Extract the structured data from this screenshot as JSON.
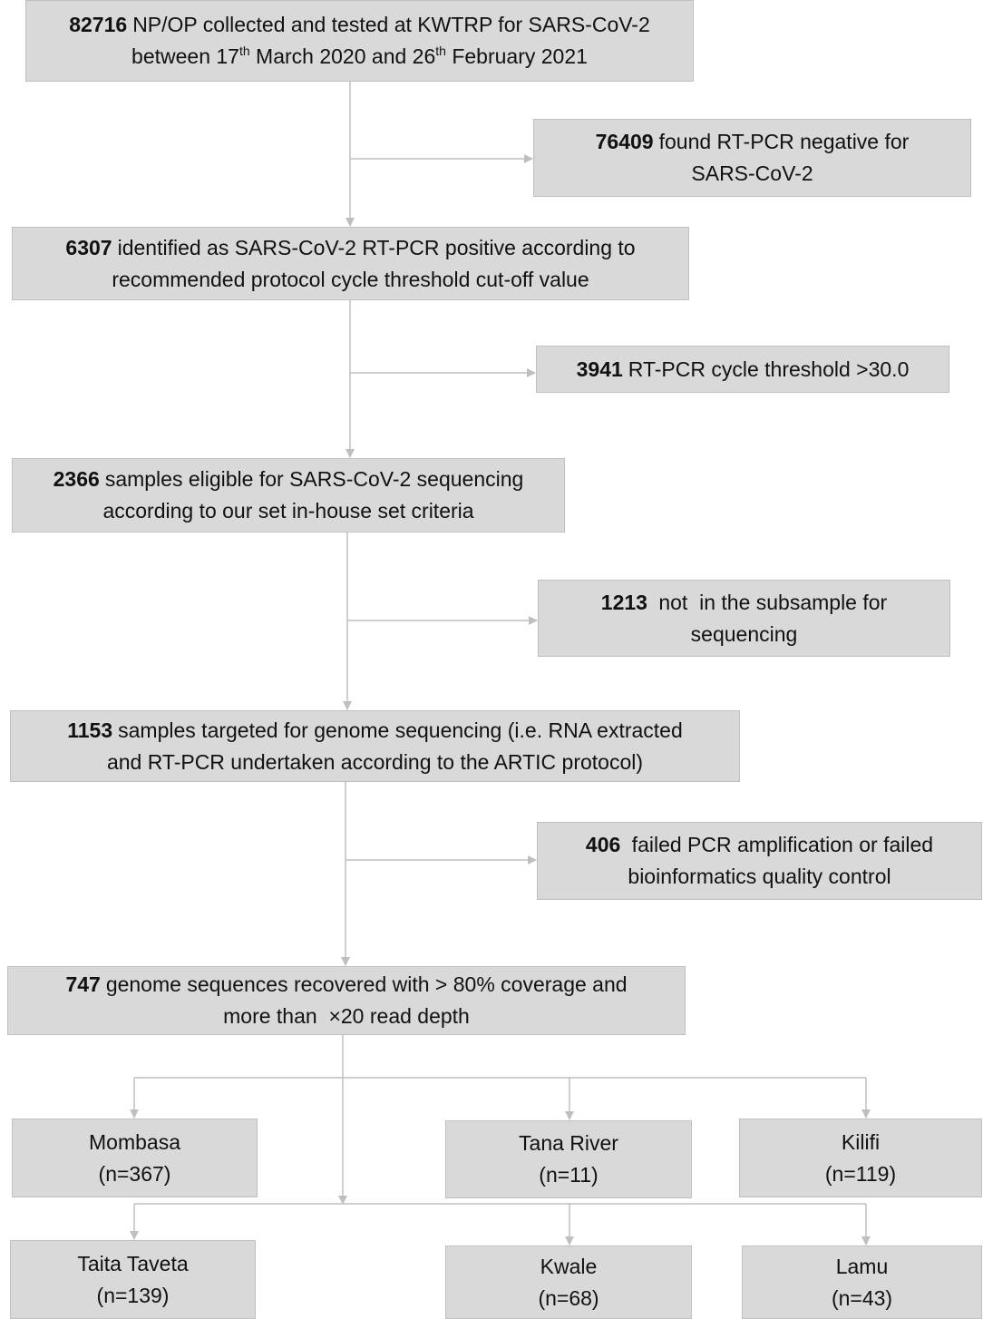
{
  "nodes": [
    {
      "count": 82716,
      "lines": [
        [
          "NP/OP collected and tested at KWTRP for SARS-CoV-2"
        ],
        [
          "between 17",
          "th",
          " March 2020 and 26",
          "th",
          " February 2021"
        ]
      ]
    },
    {
      "count": 76409,
      "lines": [
        [
          "found RT-PCR negative for"
        ],
        [
          "SARS-CoV-2"
        ]
      ]
    },
    {
      "count": 6307,
      "lines": [
        [
          "identified as SARS-CoV-2 RT-PCR positive according to"
        ],
        [
          "recommended protocol cycle threshold cut-off value"
        ]
      ]
    },
    {
      "count": 3941,
      "lines": [
        [
          "RT-PCR cycle threshold >30.0"
        ]
      ]
    },
    {
      "count": 2366,
      "lines": [
        [
          "samples eligible for SARS-CoV-2 sequencing"
        ],
        [
          "according to our set in-house set criteria"
        ]
      ]
    },
    {
      "count": 1213,
      "lines": [
        [
          " not  in the subsample for"
        ],
        [
          "sequencing"
        ]
      ]
    },
    {
      "count": 1153,
      "lines": [
        [
          "samples targeted for genome sequencing (i.e. RNA extracted"
        ],
        [
          "and RT-PCR undertaken according to the ARTIC protocol)"
        ]
      ]
    },
    {
      "count": 406,
      "lines": [
        [
          " failed PCR amplification or failed"
        ],
        [
          "bioinformatics quality control"
        ]
      ]
    },
    {
      "count": 747,
      "lines": [
        [
          "genome sequences recovered with > 80% coverage and"
        ],
        [
          "more than  ×20 read depth"
        ]
      ]
    }
  ],
  "regions": [
    {
      "name": "Mombasa",
      "n": "(n=367)"
    },
    {
      "name": "Tana River",
      "n": "(n=11)"
    },
    {
      "name": "Kilifi",
      "n": "(n=119)"
    },
    {
      "name": "Taita Taveta",
      "n": "(n=139)"
    },
    {
      "name": "Kwale",
      "n": "(n=68)"
    },
    {
      "name": "Lamu",
      "n": "(n=43)"
    }
  ]
}
